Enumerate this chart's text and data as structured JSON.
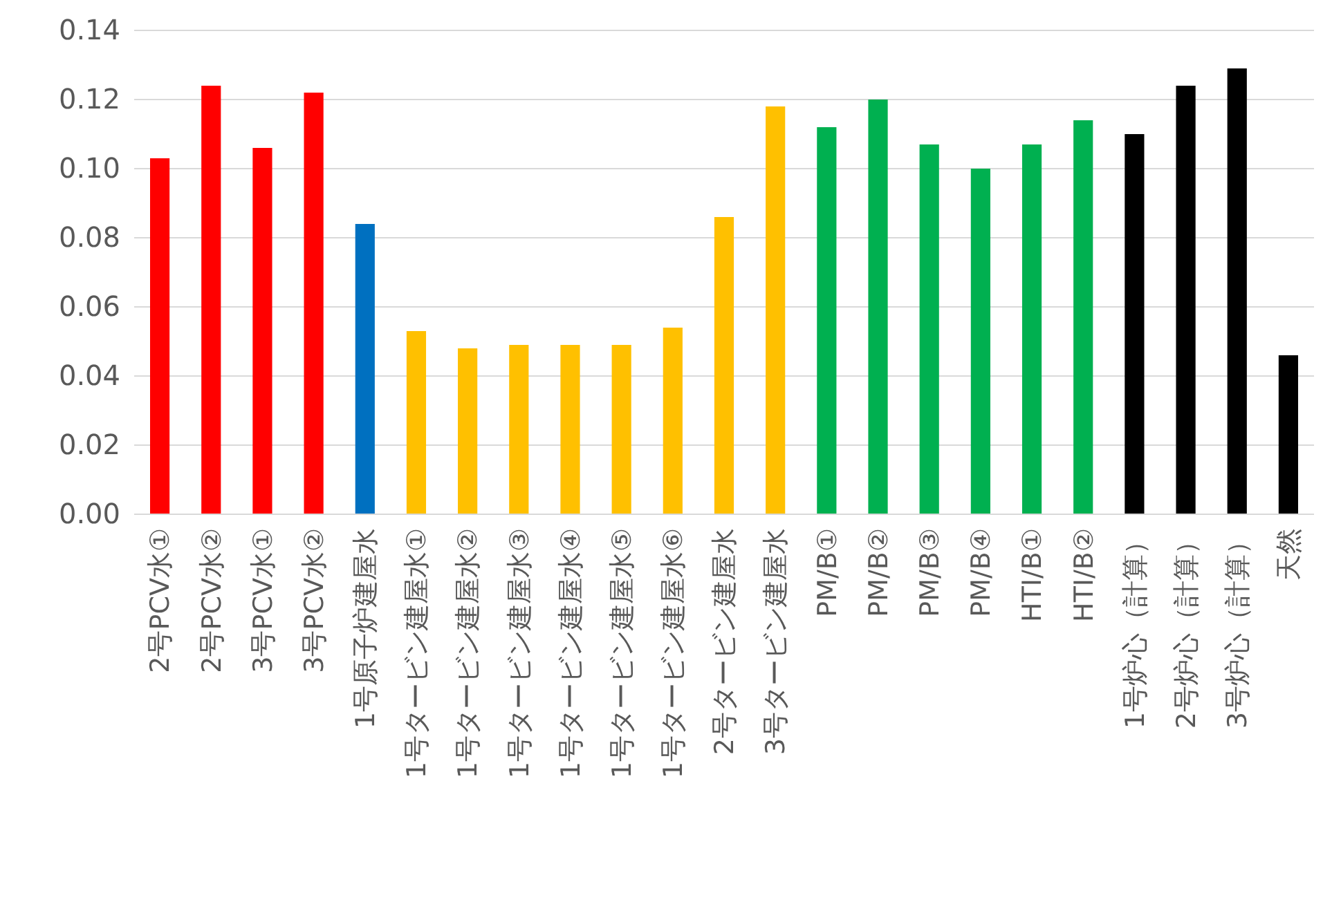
{
  "chart_data": {
    "type": "bar",
    "categories": [
      "2号PCV水①",
      "2号PCV水②",
      "3号PCV水①",
      "3号PCV水②",
      "1号原子炉建屋水",
      "1号タービン建屋水①",
      "1号タービン建屋水②",
      "1号タービン建屋水③",
      "1号タービン建屋水④",
      "1号タービン建屋水⑤",
      "1号タービン建屋水⑥",
      "2号タービン建屋水",
      "3号タービン建屋水",
      "PM/B①",
      "PM/B②",
      "PM/B③",
      "PM/B④",
      "HTI/B①",
      "HTI/B②",
      "1号炉心（計算）",
      "2号炉心（計算）",
      "3号炉心（計算）",
      "天然"
    ],
    "values": [
      0.103,
      0.124,
      0.106,
      0.122,
      0.084,
      0.053,
      0.048,
      0.049,
      0.049,
      0.049,
      0.054,
      0.086,
      0.118,
      0.112,
      0.12,
      0.107,
      0.1,
      0.107,
      0.114,
      0.11,
      0.124,
      0.129,
      0.046
    ],
    "colors": [
      "#ff0000",
      "#ff0000",
      "#ff0000",
      "#ff0000",
      "#0070c0",
      "#ffc000",
      "#ffc000",
      "#ffc000",
      "#ffc000",
      "#ffc000",
      "#ffc000",
      "#ffc000",
      "#ffc000",
      "#00b050",
      "#00b050",
      "#00b050",
      "#00b050",
      "#00b050",
      "#00b050",
      "#000000",
      "#000000",
      "#000000",
      "#000000"
    ],
    "ylim": [
      0,
      0.14
    ],
    "yticks": [
      {
        "value": 0,
        "label": "0.00"
      },
      {
        "value": 0.02,
        "label": "0.02"
      },
      {
        "value": 0.04,
        "label": "0.04"
      },
      {
        "value": 0.06,
        "label": "0.06"
      },
      {
        "value": 0.08,
        "label": "0.08"
      },
      {
        "value": 0.1,
        "label": "0.10"
      },
      {
        "value": 0.12,
        "label": "0.12"
      },
      {
        "value": 0.14,
        "label": "0.14"
      }
    ],
    "grid": "y"
  }
}
